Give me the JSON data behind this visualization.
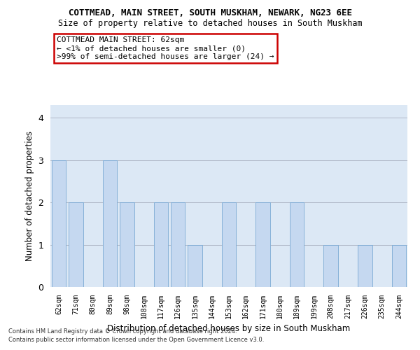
{
  "title1": "COTTMEAD, MAIN STREET, SOUTH MUSKHAM, NEWARK, NG23 6EE",
  "title2": "Size of property relative to detached houses in South Muskham",
  "xlabel": "Distribution of detached houses by size in South Muskham",
  "ylabel": "Number of detached properties",
  "categories": [
    "62sqm",
    "71sqm",
    "80sqm",
    "89sqm",
    "98sqm",
    "108sqm",
    "117sqm",
    "126sqm",
    "135sqm",
    "144sqm",
    "153sqm",
    "162sqm",
    "171sqm",
    "180sqm",
    "189sqm",
    "199sqm",
    "208sqm",
    "217sqm",
    "226sqm",
    "235sqm",
    "244sqm"
  ],
  "values": [
    3,
    2,
    0,
    3,
    2,
    0,
    2,
    2,
    1,
    0,
    2,
    0,
    2,
    0,
    2,
    0,
    1,
    0,
    1,
    0,
    1
  ],
  "bar_color": "#c5d8f0",
  "bar_edge_color": "#7aaad4",
  "background_color": "#ffffff",
  "plot_bg_color": "#dce8f5",
  "grid_color": "#b0b8c8",
  "annotation_box_color": "#cc0000",
  "annotation_text_line1": "COTTMEAD MAIN STREET: 62sqm",
  "annotation_text_line2": "← <1% of detached houses are smaller (0)",
  "annotation_text_line3": ">99% of semi-detached houses are larger (24) →",
  "footer1": "Contains HM Land Registry data © Crown copyright and database right 2024.",
  "footer2": "Contains public sector information licensed under the Open Government Licence v3.0.",
  "ylim": [
    0,
    4.3
  ],
  "yticks": [
    0,
    1,
    2,
    3,
    4
  ]
}
